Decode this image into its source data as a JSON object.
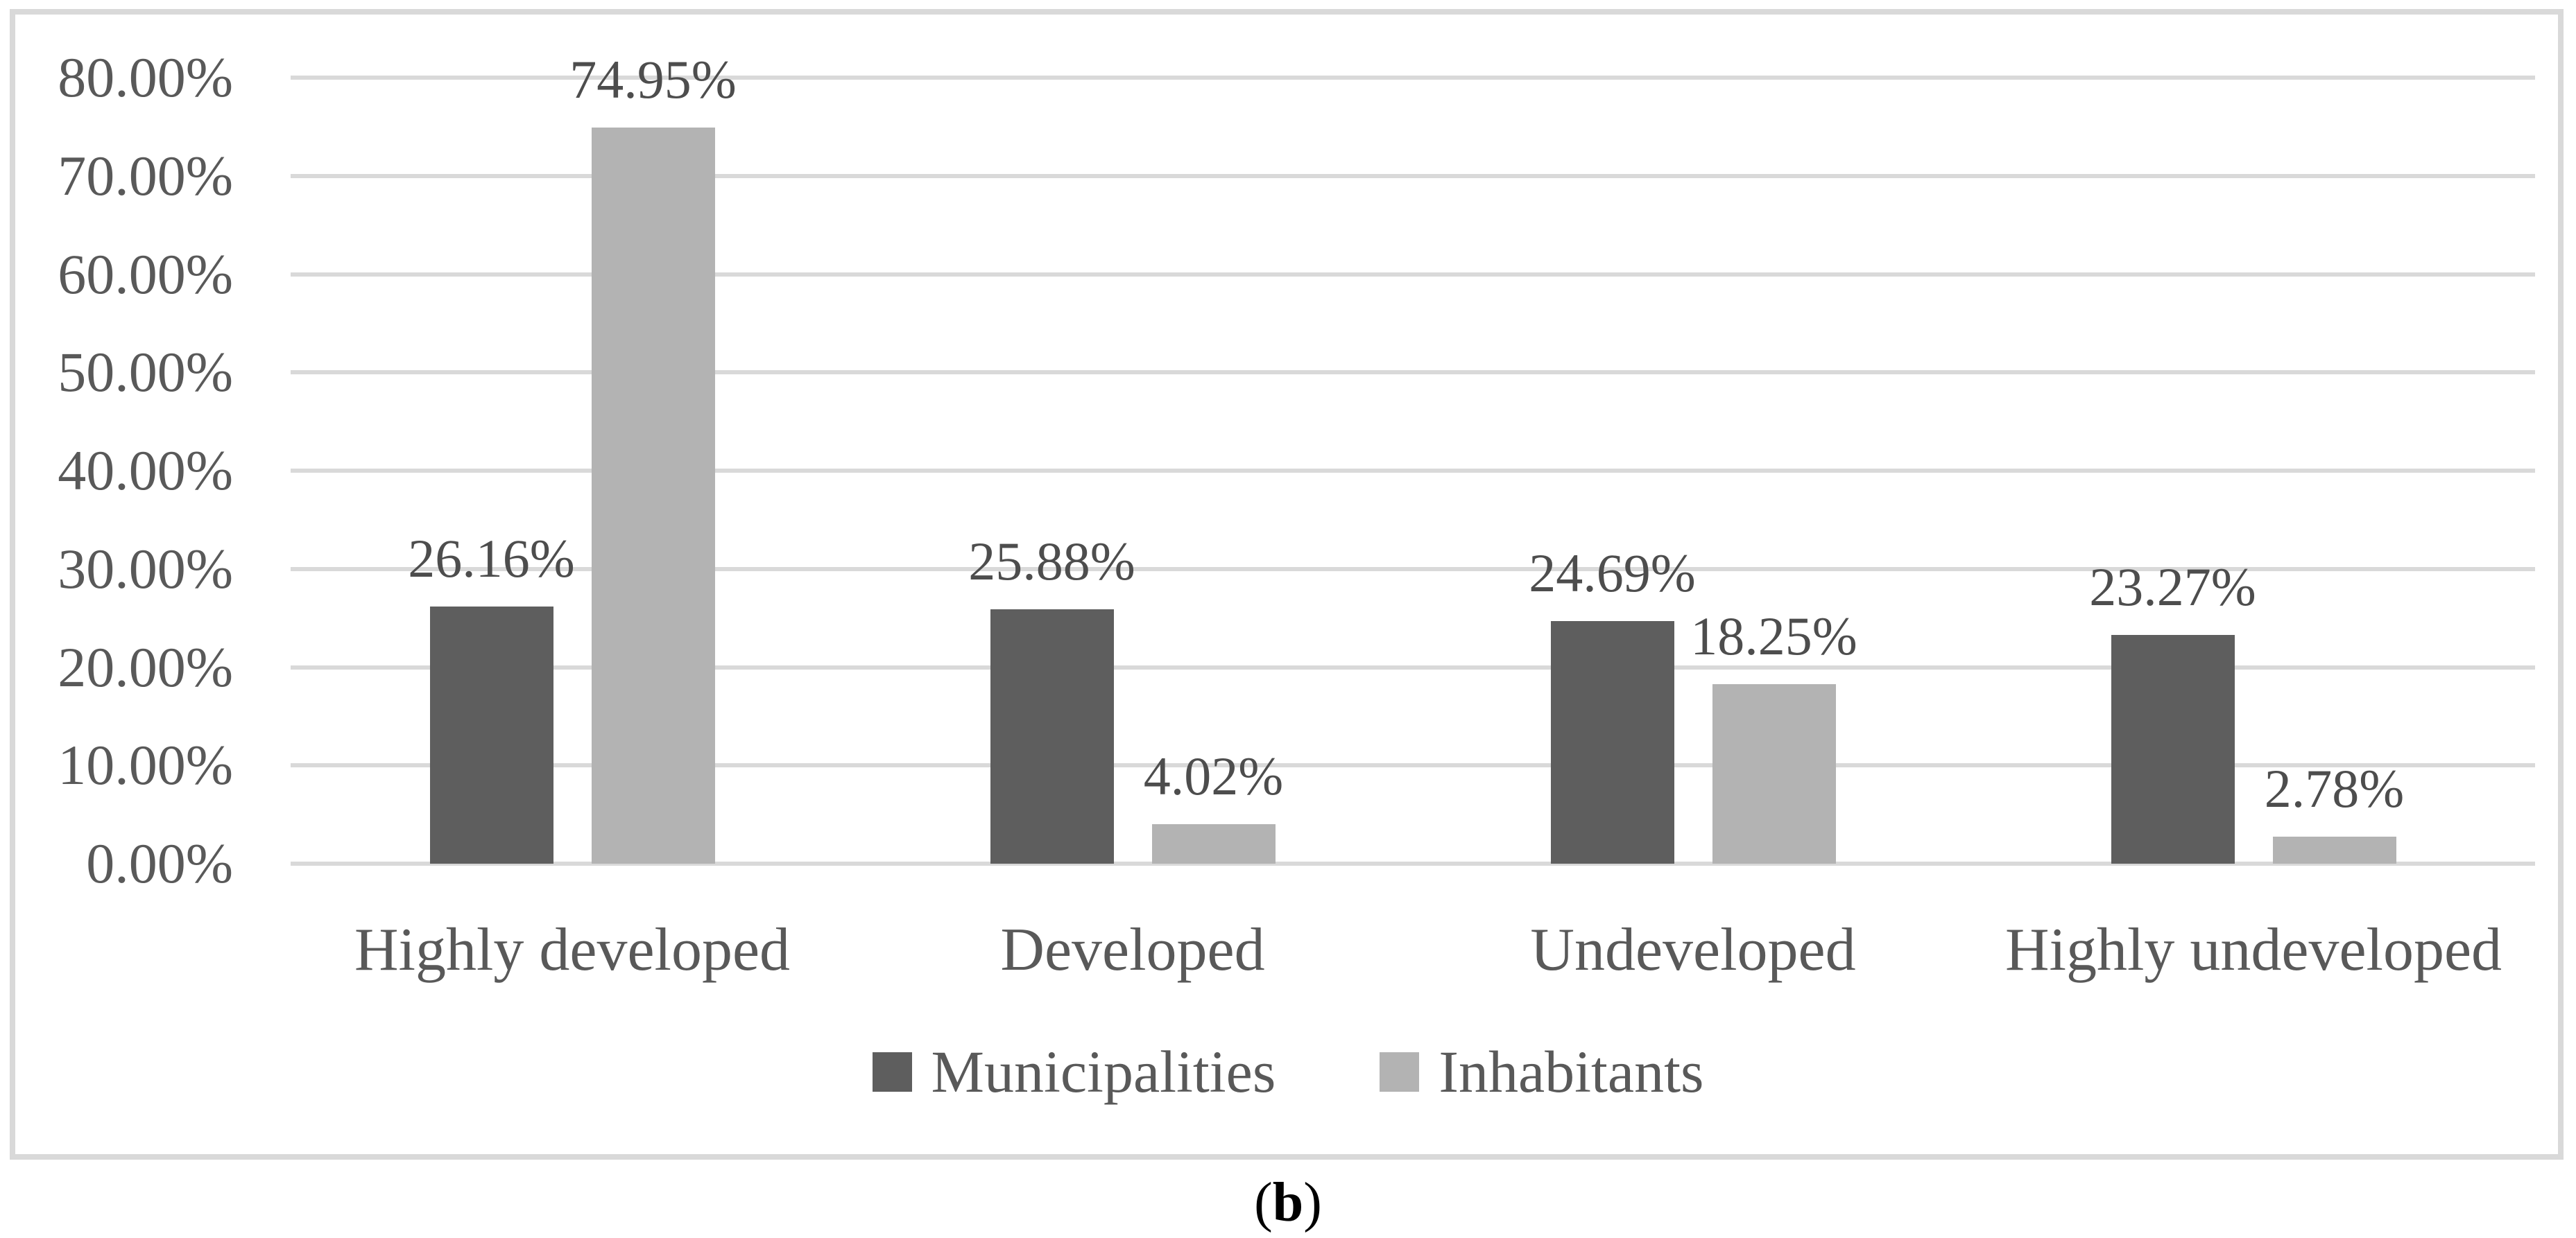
{
  "figure": {
    "caption": {
      "open": "(",
      "letter": "b",
      "close": ")"
    }
  },
  "chart_data": {
    "type": "bar",
    "title": "",
    "xlabel": "",
    "ylabel": "",
    "categories": [
      "Highly developed",
      "Developed",
      "Undeveloped",
      "Highly undeveloped"
    ],
    "series": [
      {
        "name": "Municipalities",
        "values": [
          26.16,
          25.88,
          24.69,
          23.27
        ],
        "labels": [
          "26.16%",
          "25.88%",
          "24.69%",
          "23.27%"
        ],
        "color": "#5e5e5e"
      },
      {
        "name": "Inhabitants",
        "values": [
          74.95,
          4.02,
          18.25,
          2.78
        ],
        "labels": [
          "74.95%",
          "4.02%",
          "18.25%",
          "2.78%"
        ],
        "color": "#b3b3b3"
      }
    ],
    "y_axis": {
      "min": 0,
      "max": 80,
      "step": 10,
      "tick_labels": [
        "0.00%",
        "10.00%",
        "20.00%",
        "30.00%",
        "40.00%",
        "50.00%",
        "60.00%",
        "70.00%",
        "80.00%"
      ]
    },
    "grid": true,
    "legend_position": "bottom",
    "colors": {
      "gridline": "#d9d9d9",
      "frame_border": "#d9d9d9",
      "axis_text": "#595959",
      "data_label_text": "#4d4d4d",
      "caption_text": "#000000"
    }
  }
}
